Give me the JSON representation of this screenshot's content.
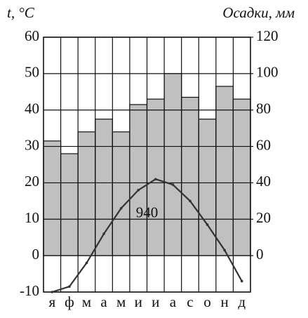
{
  "chart_data": {
    "type": "bar",
    "y_label": "t, °C",
    "y2_label": "Осадки, мм",
    "annotation": "940",
    "categories": [
      "я",
      "ф",
      "м",
      "а",
      "м",
      "и",
      "и",
      "а",
      "с",
      "о",
      "н",
      "д"
    ],
    "series": [
      {
        "type": "bar",
        "axis": "y2",
        "color": "#c0c0c0",
        "values": [
          63,
          56,
          68,
          75,
          68,
          83,
          86,
          100,
          87,
          75,
          93,
          86
        ]
      },
      {
        "type": "line",
        "axis": "y",
        "color": "#333333",
        "values": [
          -10,
          -8.5,
          -2,
          6,
          13,
          18,
          21,
          19.5,
          15,
          8.5,
          1.5,
          -7
        ]
      }
    ],
    "ylim": [
      -10,
      60
    ],
    "yticks": [
      -10,
      0,
      10,
      20,
      30,
      40,
      50,
      60
    ],
    "y2lim": [
      -20,
      120
    ],
    "y2ticks": [
      0,
      20,
      40,
      60,
      80,
      100,
      120
    ],
    "grid": true
  }
}
